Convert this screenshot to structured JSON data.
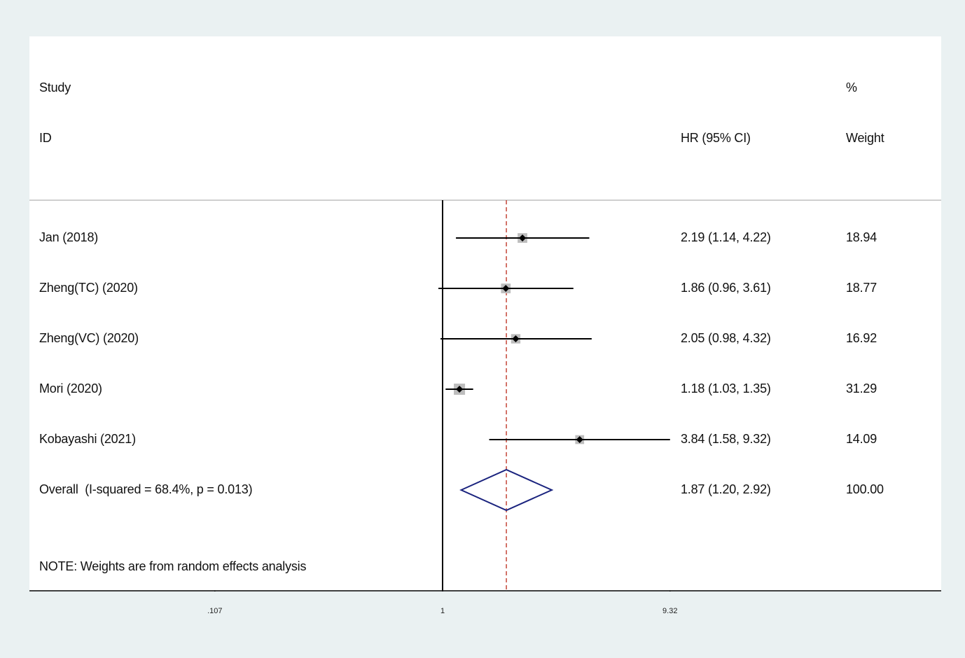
{
  "header": {
    "study_label": "Study",
    "id_label": "ID",
    "effect_label": "HR (95% CI)",
    "pct_label": "%",
    "weight_label": "Weight"
  },
  "note": "NOTE: Weights are from random effects analysis",
  "colors": {
    "background": "#eaf1f2",
    "panel": "#ffffff",
    "ci_line": "#000000",
    "weight_box": "#bdbdbd",
    "reference_line": "#000000",
    "overall_line": "#c0392b",
    "diamond": "#1a237e"
  },
  "chart_data": {
    "type": "forest",
    "x_scale": "log",
    "xlabel": "",
    "ticks": [
      {
        "value": 0.107,
        "label": ".107"
      },
      {
        "value": 1,
        "label": "1"
      },
      {
        "value": 9.32,
        "label": "9.32"
      }
    ],
    "xlim": [
      0.107,
      9.32
    ],
    "reference_value": 1,
    "studies": [
      {
        "label": "Jan (2018)",
        "hr": 2.19,
        "lower": 1.14,
        "upper": 4.22,
        "ci_text": "2.19 (1.14, 4.22)",
        "weight": 18.94,
        "weight_text": "18.94"
      },
      {
        "label": "Zheng(TC) (2020)",
        "hr": 1.86,
        "lower": 0.96,
        "upper": 3.61,
        "ci_text": "1.86 (0.96, 3.61)",
        "weight": 18.77,
        "weight_text": "18.77"
      },
      {
        "label": "Zheng(VC) (2020)",
        "hr": 2.05,
        "lower": 0.98,
        "upper": 4.32,
        "ci_text": "2.05 (0.98, 4.32)",
        "weight": 16.92,
        "weight_text": "16.92"
      },
      {
        "label": "Mori (2020)",
        "hr": 1.18,
        "lower": 1.03,
        "upper": 1.35,
        "ci_text": "1.18 (1.03, 1.35)",
        "weight": 31.29,
        "weight_text": "31.29"
      },
      {
        "label": "Kobayashi (2021)",
        "hr": 3.84,
        "lower": 1.58,
        "upper": 9.32,
        "ci_text": "3.84 (1.58, 9.32)",
        "weight": 14.09,
        "weight_text": "14.09"
      }
    ],
    "overall": {
      "label": "Overall  (I-squared = 68.4%, p = 0.013)",
      "hr": 1.87,
      "lower": 1.2,
      "upper": 2.92,
      "ci_text": "1.87 (1.20, 2.92)",
      "weight": 100.0,
      "weight_text": "100.00"
    }
  }
}
